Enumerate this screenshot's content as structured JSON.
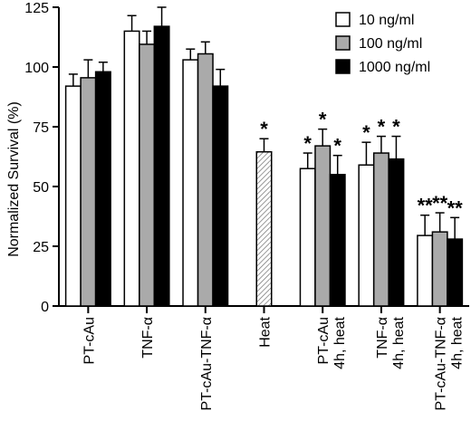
{
  "chart_data": {
    "type": "bar",
    "ylabel": "Normalized Survival (%)",
    "ylim": [
      0,
      125
    ],
    "yticks": [
      "0",
      "25",
      "50",
      "75",
      "100",
      "125"
    ],
    "legend_position": "top-right",
    "categories": [
      {
        "lines": [
          "PT-cAu"
        ]
      },
      {
        "lines": [
          "TNF-α"
        ]
      },
      {
        "lines": [
          "PT-cAu-TNF-α"
        ]
      },
      {
        "lines": [
          "Heat"
        ]
      },
      {
        "lines": [
          "PT-cAu",
          "4h, heat"
        ]
      },
      {
        "lines": [
          "TNF-α",
          "4h, heat"
        ]
      },
      {
        "lines": [
          "PT-cAu-TNF-α",
          "4h, heat"
        ]
      }
    ],
    "series": [
      {
        "name": "10 ng/ml",
        "color": "#ffffff",
        "values": [
          92,
          115,
          103,
          null,
          57.5,
          59,
          29.5
        ],
        "errors": [
          5,
          6.5,
          4.5,
          null,
          6.5,
          9.5,
          8.5
        ],
        "marks": [
          "",
          "",
          "",
          "",
          "*",
          "*",
          "**"
        ]
      },
      {
        "name": "100 ng/ml",
        "color": "#aaaaaa",
        "values": [
          95.5,
          109.5,
          105.5,
          null,
          67,
          64,
          31
        ],
        "errors": [
          7.5,
          5.5,
          5,
          null,
          7,
          7,
          8
        ],
        "marks": [
          "",
          "",
          "",
          "",
          "*",
          "*",
          "**"
        ]
      },
      {
        "name": "1000 ng/ml",
        "color": "#000000",
        "values": [
          98,
          117,
          92,
          null,
          55,
          61.5,
          28
        ],
        "errors": [
          4,
          8,
          7,
          null,
          8,
          9.5,
          9
        ],
        "marks": [
          "",
          "",
          "",
          "",
          "*",
          "*",
          "**"
        ]
      }
    ],
    "heat": {
      "category_index": 3,
      "value": 64.5,
      "error": 5.5,
      "mark": "*",
      "pattern": "diagonal-hatch"
    }
  }
}
